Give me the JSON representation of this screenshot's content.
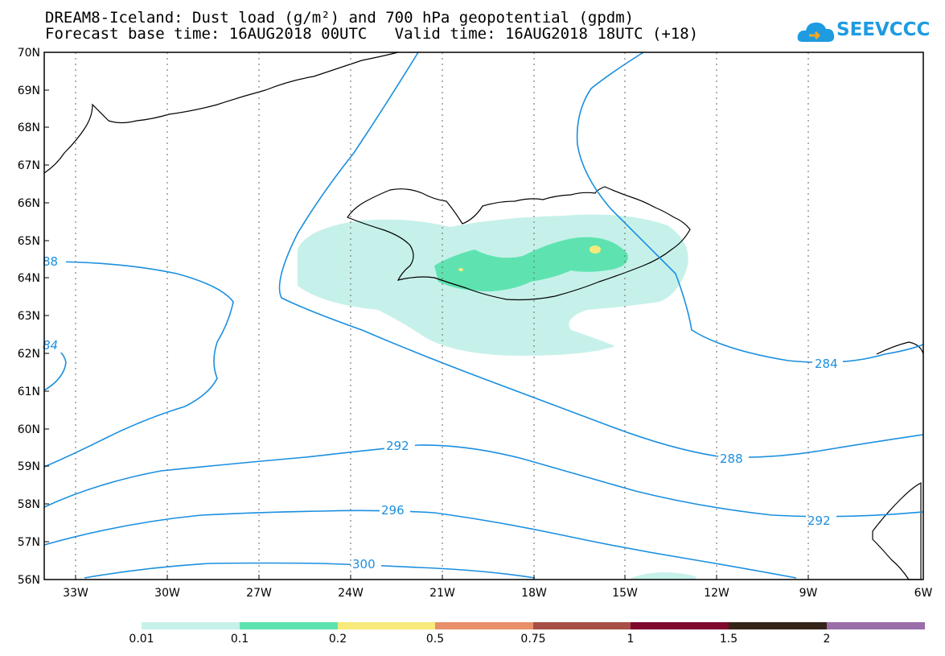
{
  "title_line1": "DREAM8-Iceland: Dust load (g/m²) and 700 hPa geopotential (gpdm)",
  "title_line2": "Forecast base time: 16AUG2018 00UTC   Valid time: 16AUG2018 18UTC (+18)",
  "logo_text": "SEEVCCC",
  "logo_icon": "cloud-icon",
  "map": {
    "lon_range": [
      -34,
      -6
    ],
    "lat_range": [
      56,
      70
    ],
    "lat_labels": [
      "70N",
      "69N",
      "68N",
      "67N",
      "66N",
      "65N",
      "64N",
      "63N",
      "62N",
      "61N",
      "60N",
      "59N",
      "58N",
      "57N",
      "56N"
    ],
    "lon_labels": [
      "33W",
      "30W",
      "27W",
      "24W",
      "21W",
      "18W",
      "15W",
      "12W",
      "9W",
      "6W"
    ],
    "contour_color": "#1a8fe0",
    "contour_labels": [
      "88",
      "84",
      "284",
      "292",
      "288",
      "296",
      "292",
      "300"
    ]
  },
  "legend": {
    "colors": [
      "#c6f1ea",
      "#5ee3b0",
      "#f7ea7a",
      "#e8906a",
      "#a64f47",
      "#7f0a2e",
      "#352518",
      "#9a6ea9"
    ],
    "labels": [
      "0.01",
      "0.1",
      "0.2",
      "0.5",
      "0.75",
      "1",
      "1.5",
      "2"
    ]
  }
}
